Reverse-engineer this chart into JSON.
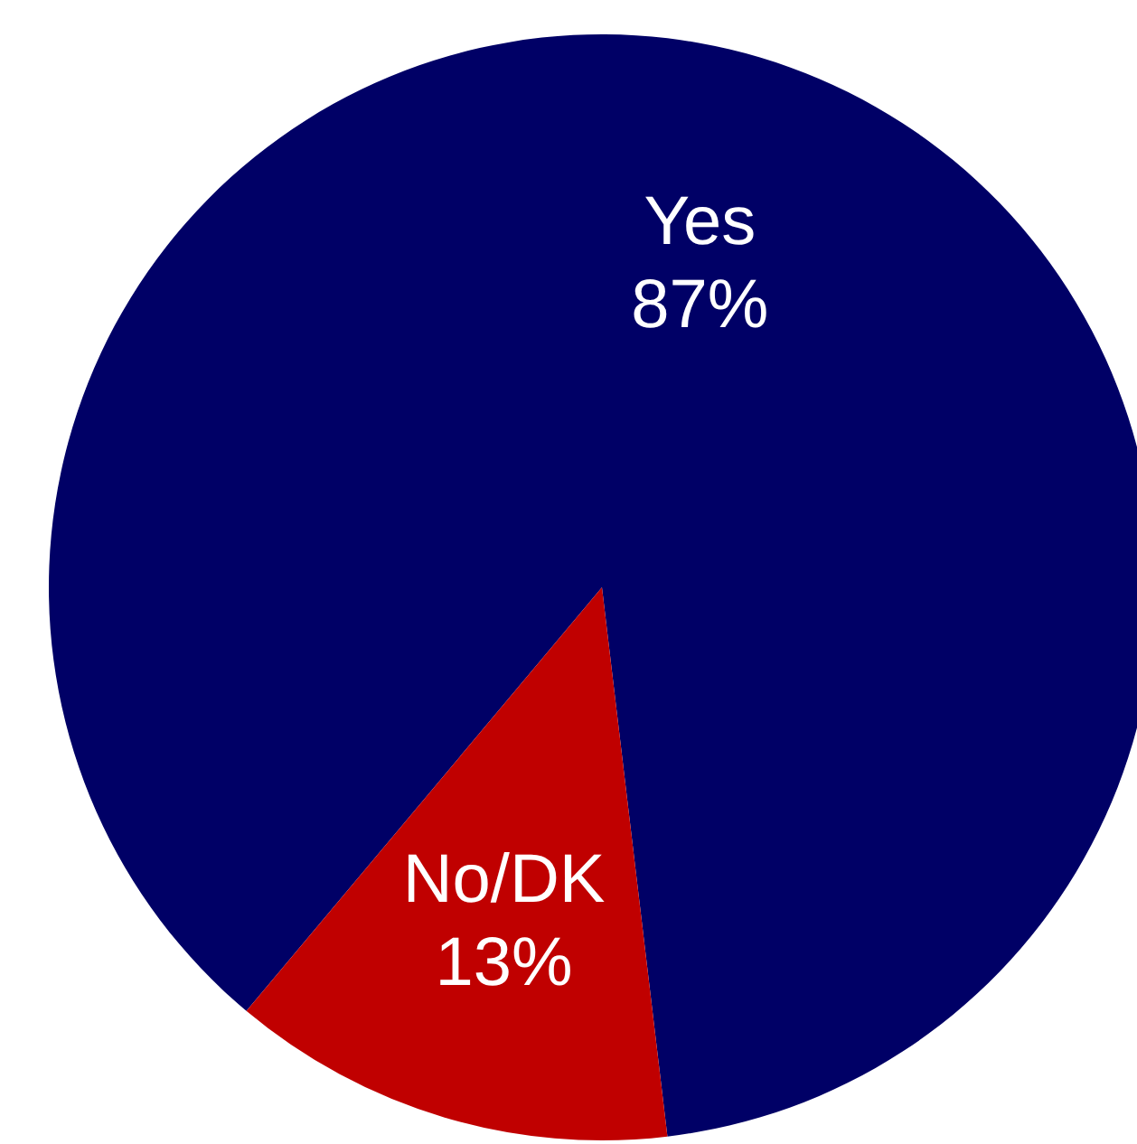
{
  "chart_data": {
    "type": "pie",
    "categories": [
      "Yes",
      "No/DK"
    ],
    "values": [
      87,
      13
    ],
    "colors": [
      "#000066",
      "#c00000"
    ],
    "value_labels": [
      "87%",
      "13%"
    ]
  }
}
